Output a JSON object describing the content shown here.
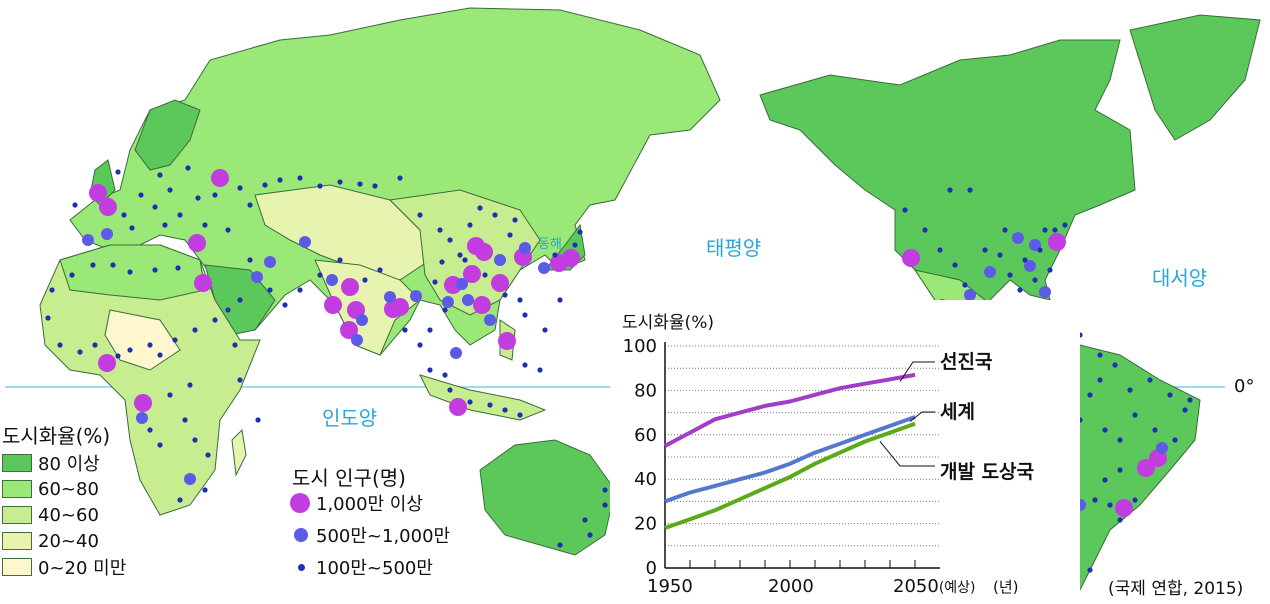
{
  "map": {
    "oceans": [
      {
        "id": "pacific",
        "label": "태평양"
      },
      {
        "id": "atlantic",
        "label": "대서양"
      },
      {
        "id": "indian",
        "label": "인도양"
      }
    ],
    "east_sea_label": "동해",
    "equator_label": "0°",
    "colors": {
      "ocean": "#ffffff",
      "equator_line": "#7fcfe6",
      "border": "#3a6b3a",
      "city_1000": "#c23de0",
      "city_500": "#5b5be8",
      "city_100": "#1f2fb0"
    }
  },
  "legend_urban": {
    "title": "도시화율(%)",
    "items": [
      {
        "label": "80 이상",
        "color": "#5cc85c"
      },
      {
        "label": "60~80",
        "color": "#9ae878"
      },
      {
        "label": "40~60",
        "color": "#c8ec90"
      },
      {
        "label": "20~40",
        "color": "#e6f4b0"
      },
      {
        "label": "0~20 미만",
        "color": "#fcf7cc"
      }
    ]
  },
  "legend_population": {
    "title": "도시 인구(명)",
    "items": [
      {
        "label": "1,000만 이상",
        "size": "large"
      },
      {
        "label": "500만~1,000만",
        "size": "medium"
      },
      {
        "label": "100만~500만",
        "size": "small"
      }
    ]
  },
  "chart_data": {
    "type": "line",
    "ylabel": "도시화율(%)",
    "xlabel": "(년)",
    "x_tick_labels": [
      "1950",
      "2000",
      "2050(예상)"
    ],
    "y_ticks": [
      0,
      20,
      40,
      60,
      80,
      100
    ],
    "xlim": [
      1950,
      2050
    ],
    "ylim": [
      0,
      100
    ],
    "x": [
      1950,
      1960,
      1970,
      1980,
      1990,
      2000,
      2010,
      2020,
      2030,
      2040,
      2050
    ],
    "series": [
      {
        "name": "선진국",
        "color": "#a23dc8",
        "values": [
          55,
          61,
          67,
          70,
          73,
          75,
          78,
          81,
          83,
          85,
          87
        ]
      },
      {
        "name": "세계",
        "color": "#5577cc",
        "values": [
          30,
          34,
          37,
          40,
          43,
          47,
          52,
          56,
          60,
          64,
          68
        ]
      },
      {
        "name": "개발 도상국",
        "color": "#5aaa1a",
        "values": [
          18,
          22,
          26,
          31,
          36,
          41,
          47,
          52,
          57,
          61,
          65
        ]
      }
    ]
  },
  "source": "(국제 연합, 2015)"
}
